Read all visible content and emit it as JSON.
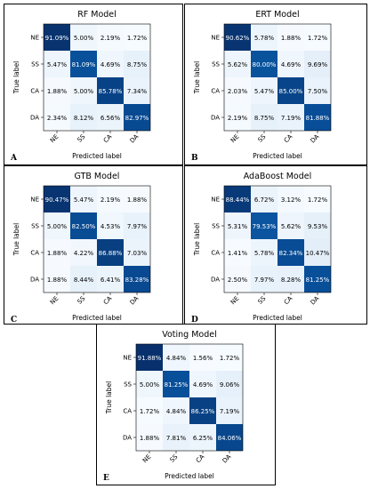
{
  "chart_data": [
    {
      "type": "heatmap",
      "title": "RF Model",
      "panel_letter": "A",
      "xlabel": "Predicted label",
      "ylabel": "True label",
      "categories": [
        "NE",
        "SS",
        "CA",
        "DA"
      ],
      "values": [
        [
          91.09,
          5.0,
          2.19,
          1.72
        ],
        [
          5.47,
          81.09,
          4.69,
          8.75
        ],
        [
          1.88,
          5.0,
          85.78,
          7.34
        ],
        [
          2.34,
          8.12,
          6.56,
          82.97
        ]
      ]
    },
    {
      "type": "heatmap",
      "title": "ERT Model",
      "panel_letter": "B",
      "xlabel": "Predicted label",
      "ylabel": "True label",
      "categories": [
        "NE",
        "SS",
        "CA",
        "DA"
      ],
      "values": [
        [
          90.62,
          5.78,
          1.88,
          1.72
        ],
        [
          5.62,
          80.0,
          4.69,
          9.69
        ],
        [
          2.03,
          5.47,
          85.0,
          7.5
        ],
        [
          2.19,
          8.75,
          7.19,
          81.88
        ]
      ]
    },
    {
      "type": "heatmap",
      "title": "GTB Model",
      "panel_letter": "C",
      "xlabel": "Predicted label",
      "ylabel": "True label",
      "categories": [
        "NE",
        "SS",
        "CA",
        "DA"
      ],
      "values": [
        [
          90.47,
          5.47,
          2.19,
          1.88
        ],
        [
          5.0,
          82.5,
          4.53,
          7.97
        ],
        [
          1.88,
          4.22,
          86.88,
          7.03
        ],
        [
          1.88,
          8.44,
          6.41,
          83.28
        ]
      ]
    },
    {
      "type": "heatmap",
      "title": "AdaBoost Model",
      "panel_letter": "D",
      "xlabel": "Predicted label",
      "ylabel": "True label",
      "categories": [
        "NE",
        "SS",
        "CA",
        "DA"
      ],
      "values": [
        [
          88.44,
          6.72,
          3.12,
          1.72
        ],
        [
          5.31,
          79.53,
          5.62,
          9.53
        ],
        [
          1.41,
          5.78,
          82.34,
          10.47
        ],
        [
          2.5,
          7.97,
          8.28,
          81.25
        ]
      ]
    },
    {
      "type": "heatmap",
      "title": "Voting Model",
      "panel_letter": "E",
      "xlabel": "Predicted label",
      "ylabel": "True label",
      "categories": [
        "NE",
        "SS",
        "CA",
        "DA"
      ],
      "values": [
        [
          91.88,
          4.84,
          1.56,
          1.72
        ],
        [
          5.0,
          81.25,
          4.69,
          9.06
        ],
        [
          1.72,
          4.84,
          86.25,
          7.19
        ],
        [
          1.88,
          7.81,
          6.25,
          84.06
        ]
      ]
    }
  ]
}
